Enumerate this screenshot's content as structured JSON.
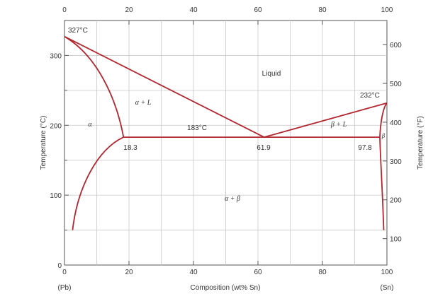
{
  "chart_data": {
    "type": "diagram",
    "x_axis": {
      "label": "Composition (wt% Sn)",
      "range": [
        0,
        100
      ],
      "bottom_ticks": [
        "0",
        "20",
        "40",
        "60",
        "80",
        "100"
      ],
      "top_ticks": [
        "0",
        "20",
        "40",
        "60",
        "80",
        "100"
      ],
      "left_end_label": "(Pb)",
      "right_end_label": "(Sn)"
    },
    "y_axis_left": {
      "label": "Temperature (°C)",
      "range": [
        0,
        350
      ],
      "ticks": [
        "0",
        "100",
        "200",
        "300"
      ]
    },
    "y_axis_right": {
      "label": "Temperature (°F)",
      "ticks": [
        "100",
        "200",
        "300",
        "400",
        "500",
        "600"
      ]
    },
    "phase_labels": {
      "liquid": "Liquid",
      "alpha_L": "α + L",
      "alpha": "α",
      "beta_L": "β + L",
      "beta": "β",
      "alpha_beta": "α + β"
    },
    "annotations": {
      "pb_melt": "327°C",
      "sn_melt": "232°C",
      "eutectic_temp": "183°C",
      "alpha_limit": "18.3",
      "eutectic_comp": "61.9",
      "beta_limit": "97.8"
    },
    "key_points": {
      "pb_melting": {
        "x": 0,
        "y": 327
      },
      "sn_melting": {
        "x": 100,
        "y": 232
      },
      "eutectic": {
        "x": 61.9,
        "y": 183
      },
      "alpha_max": {
        "x": 18.3,
        "y": 183
      },
      "beta_max": {
        "x": 97.8,
        "y": 183
      }
    },
    "curve_color": "#b3262f",
    "grid": true
  }
}
